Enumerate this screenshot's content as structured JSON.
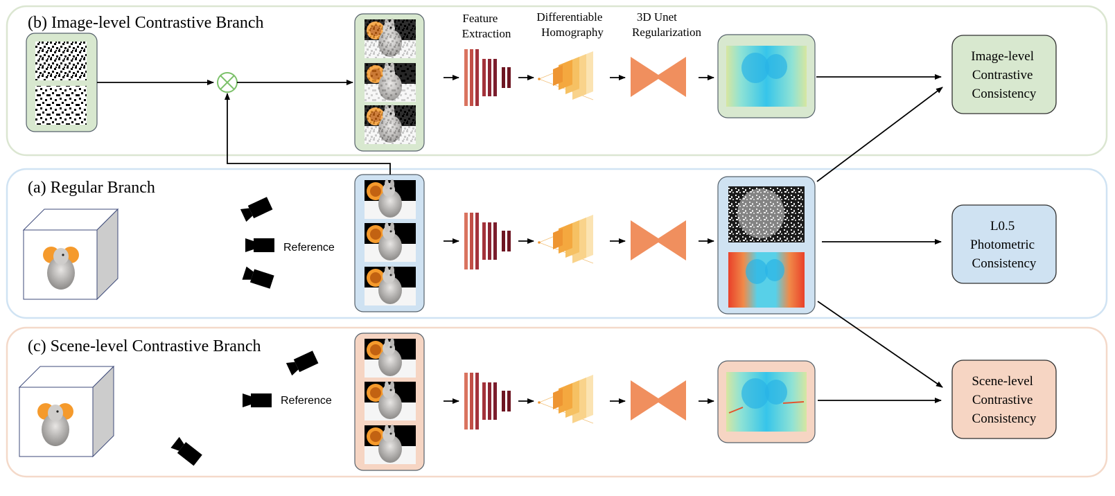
{
  "branches": {
    "image": {
      "title": "(b) Image-level Contrastive Branch",
      "result": [
        "Image-level",
        "Contrastive",
        "Consistency"
      ]
    },
    "regular": {
      "title": "(a) Regular Branch",
      "result": [
        "L0.5",
        "Photometric",
        "Consistency"
      ]
    },
    "scene": {
      "title": "(c) Scene-level Contrastive Branch",
      "result": [
        "Scene-level",
        "Contrastive",
        "Consistency"
      ]
    }
  },
  "stages": {
    "feature": [
      "Feature",
      "Extraction"
    ],
    "homography": [
      "Differentiable",
      "Homography"
    ],
    "unet": [
      "3D Unet",
      "Regularization"
    ]
  },
  "labels": {
    "reference": "Reference"
  },
  "colors": {
    "image_branch": "#d8e8cf",
    "regular_branch": "#cfe2f2",
    "scene_branch": "#f6d5c3",
    "unet": "#f08f5e",
    "feature_dark": "#6d1622",
    "feature_mid": "#a3323a",
    "feature_light": "#d9735f",
    "homography": "#f4b24f",
    "mask_plus": "#7cc16a"
  },
  "icons": [
    "mask-plus-icon",
    "camera-icon",
    "cube-icon",
    "bunny-thumbnail",
    "depth-map",
    "noise-mask"
  ]
}
